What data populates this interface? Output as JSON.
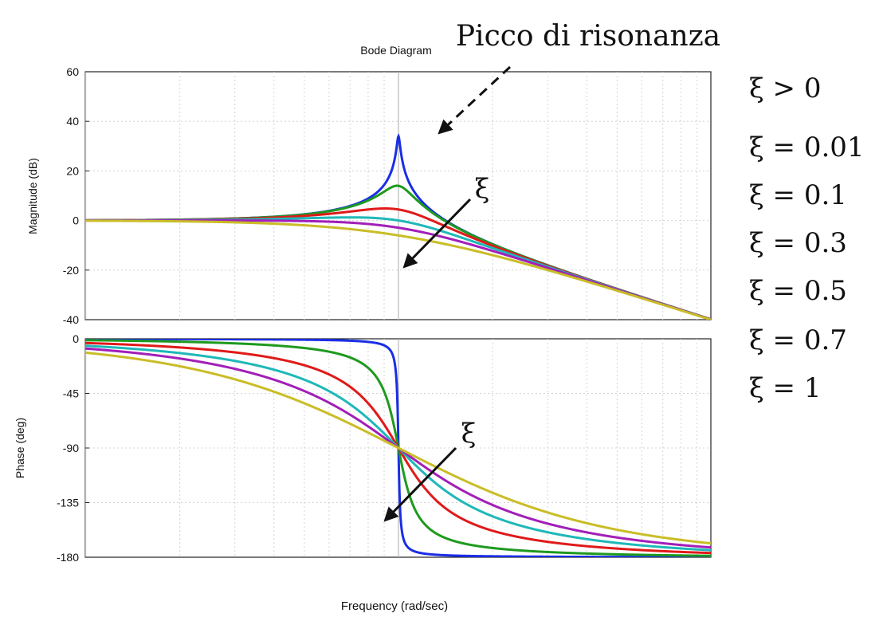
{
  "chart_data": {
    "type": "line",
    "title": "Bode Diagram",
    "xlabel": "Frequency  (rad/sec)",
    "x_scale": "log",
    "x_decades_per_panel": 2,
    "grid": true,
    "legend_placement": "right",
    "series": [
      {
        "name": "ξ = 0.01",
        "color": "#1a2ee6",
        "zeta": 0.01
      },
      {
        "name": "ξ = 0.1",
        "color": "#1e9a1e",
        "zeta": 0.1
      },
      {
        "name": "ξ = 0.3",
        "color": "#e01a1a",
        "zeta": 0.3
      },
      {
        "name": "ξ = 0.5",
        "color": "#1fb8b8",
        "zeta": 0.5
      },
      {
        "name": "ξ = 0.7",
        "color": "#a21fb8",
        "zeta": 0.7
      },
      {
        "name": "ξ = 1",
        "color": "#c9bd26",
        "zeta": 1.0
      }
    ],
    "panels": [
      {
        "id": "magnitude",
        "ylabel": "Magnitude (dB)",
        "ylim": [
          -40,
          60
        ],
        "yticks": [
          "60",
          "40",
          "20",
          "0",
          "-20",
          "-40"
        ],
        "yvalues": [
          60,
          40,
          20,
          0,
          -20,
          -40
        ],
        "annotation": "ξ",
        "top_annotation": "Picco di risonanza"
      },
      {
        "id": "phase",
        "ylabel": "Phase (deg)",
        "ylim": [
          -180,
          0
        ],
        "yticks": [
          "0",
          "-45",
          "-90",
          "-135",
          "-180"
        ],
        "yvalues": [
          0,
          -45,
          -90,
          -135,
          -180
        ],
        "annotation": "ξ"
      }
    ],
    "legend_header": "ξ > 0"
  }
}
